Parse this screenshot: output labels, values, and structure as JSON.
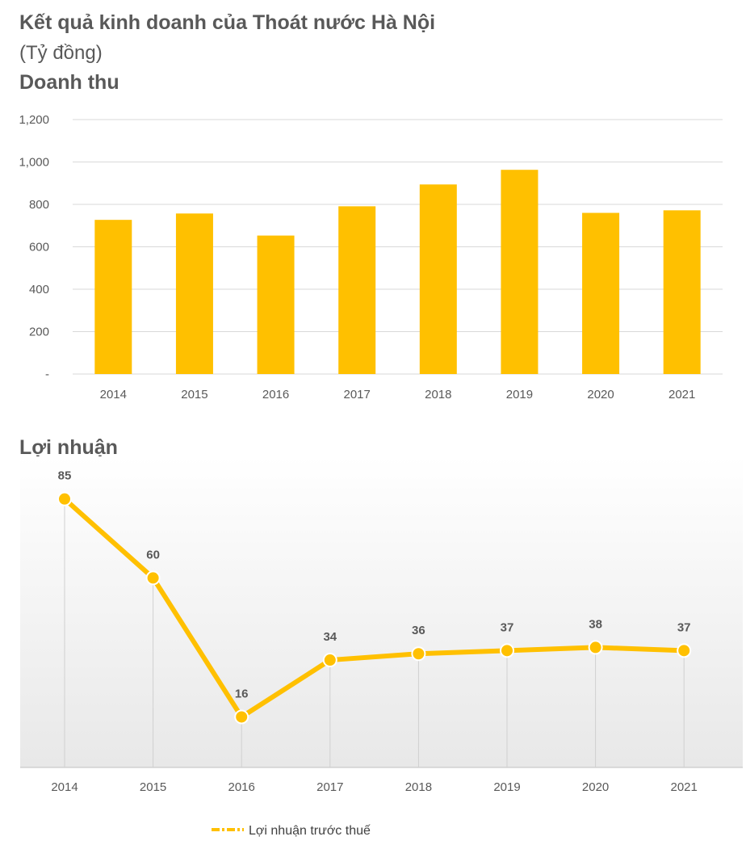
{
  "header": {
    "title": "Kết quả kinh doanh của Thoát nước Hà Nội",
    "unit": "(Tỷ đồng)"
  },
  "colors": {
    "accent": "#FFC000",
    "grid": "#D9D9D9",
    "text": "#595959"
  },
  "chart_data": [
    {
      "type": "bar",
      "title": "Doanh thu",
      "categories": [
        "2014",
        "2015",
        "2016",
        "2017",
        "2018",
        "2019",
        "2020",
        "2021"
      ],
      "values": [
        727,
        757,
        653,
        791,
        894,
        963,
        760,
        772
      ],
      "ylim": [
        0,
        1200
      ],
      "yticks": [
        0,
        200,
        400,
        600,
        800,
        1000,
        1200
      ],
      "ytick_labels": [
        "-",
        "200",
        "400",
        "600",
        "800",
        "1,000",
        "1,200"
      ],
      "xlabel": "",
      "ylabel": "",
      "grid": true
    },
    {
      "type": "line",
      "title": "Lợi nhuận",
      "categories": [
        "2014",
        "2015",
        "2016",
        "2017",
        "2018",
        "2019",
        "2020",
        "2021"
      ],
      "series": [
        {
          "name": "Lợi nhuận trước thuế",
          "values": [
            85,
            60,
            16,
            34,
            36,
            37,
            38,
            37
          ]
        }
      ],
      "data_labels": true,
      "ylim": [
        0,
        100
      ],
      "legend": "bottom",
      "grid": false
    }
  ]
}
